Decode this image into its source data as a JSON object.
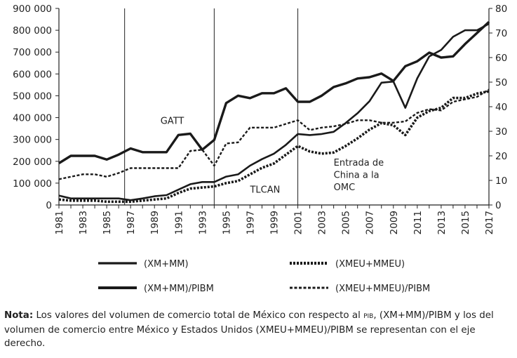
{
  "chart_data": {
    "type": "line",
    "x": [
      1981,
      1982,
      1983,
      1984,
      1985,
      1986,
      1987,
      1988,
      1989,
      1990,
      1991,
      1992,
      1993,
      1994,
      1995,
      1996,
      1997,
      1998,
      1999,
      2000,
      2001,
      2002,
      2003,
      2004,
      2005,
      2006,
      2007,
      2008,
      2009,
      2010,
      2011,
      2012,
      2013,
      2014,
      2015,
      2016,
      2017
    ],
    "x_tick_labels": [
      "1981",
      "1983",
      "1985",
      "1987",
      "1989",
      "1991",
      "1993",
      "1995",
      "1997",
      "1999",
      "2001",
      "2003",
      "2005",
      "2007",
      "2009",
      "2011",
      "2013",
      "2015",
      "2017"
    ],
    "y_left_ticks": [
      "0",
      "100 000",
      "200 000",
      "300 000",
      "400 000",
      "500 000",
      "600 000",
      "700 000",
      "800 000",
      "900 000"
    ],
    "y_right_ticks": [
      "0",
      "10",
      "20",
      "30",
      "40",
      "50",
      "60",
      "70",
      "80"
    ],
    "ylim_left": [
      0,
      900000
    ],
    "ylim_right": [
      0,
      80
    ],
    "series": [
      {
        "name": "(XM+MM)",
        "axis": "left",
        "style": "solid-thin",
        "values": [
          43000,
          30000,
          30000,
          30000,
          30000,
          30000,
          22000,
          30000,
          40000,
          45000,
          70000,
          95000,
          105000,
          105000,
          130000,
          140000,
          180000,
          210000,
          235000,
          275000,
          325000,
          320000,
          325000,
          335000,
          375000,
          420000,
          475000,
          560000,
          565000,
          445000,
          580000,
          680000,
          710000,
          770000,
          800000,
          800000,
          830000
        ]
      },
      {
        "name": "(XMEU+MMEU)",
        "axis": "left",
        "style": "dotted-thick",
        "values": [
          25000,
          20000,
          20000,
          20000,
          15000,
          15000,
          15000,
          20000,
          25000,
          30000,
          55000,
          75000,
          80000,
          85000,
          100000,
          110000,
          140000,
          170000,
          190000,
          230000,
          270000,
          245000,
          235000,
          240000,
          270000,
          305000,
          345000,
          375000,
          365000,
          320000,
          400000,
          430000,
          445000,
          490000,
          490000,
          510000,
          520000
        ]
      },
      {
        "name": "(XM+MM)/PIBM",
        "axis": "right",
        "style": "solid-thick",
        "values": [
          17,
          20,
          20,
          20,
          18.5,
          20.5,
          23,
          21.5,
          21.5,
          21.5,
          28.5,
          29,
          22.5,
          26.5,
          41.5,
          44.5,
          43.5,
          45.5,
          45.5,
          47.5,
          42,
          42,
          44.5,
          48,
          49.5,
          51.5,
          52,
          53.5,
          50.5,
          56.5,
          58.5,
          62,
          60,
          60.5,
          65.5,
          70,
          74.5
        ]
      },
      {
        "name": "(XMEU+MMEU)/PIBM",
        "axis": "right",
        "style": "dashed-thin",
        "values": [
          10.5,
          11.5,
          12.5,
          12.5,
          11.5,
          13,
          15,
          15,
          15,
          15,
          15,
          22,
          22.5,
          16,
          25,
          25.5,
          31.5,
          31.5,
          31.5,
          33,
          34.5,
          30.5,
          31.5,
          32,
          33,
          34.5,
          34.5,
          33.5,
          33.5,
          34,
          37.5,
          39,
          38.5,
          42,
          43,
          44,
          47
        ]
      }
    ],
    "vertical_lines": [
      1986.5,
      1994,
      2001
    ],
    "annotations": [
      {
        "text": "GATT",
        "x": 1989.5,
        "y_right": 33
      },
      {
        "text": "TLCAN",
        "x": 1997,
        "y_right": 5
      },
      {
        "text": "Entrada de",
        "x": 2004,
        "y_right": 16
      },
      {
        "text": "China a la",
        "x": 2004,
        "y_right": 11
      },
      {
        "text": "OMC",
        "x": 2004,
        "y_right": 6
      }
    ],
    "legend_placement": "bottom"
  },
  "note": {
    "label": "Nota:",
    "text_1": " Los valores del volumen de comercio total de México con respecto al ",
    "small": "PIB",
    "text_2": ", (XM+MM)/PIBM y los del volumen de comercio entre México y Estados Unidos (XMEU+MMEU)/PIBM se representan con el eje derecho."
  }
}
